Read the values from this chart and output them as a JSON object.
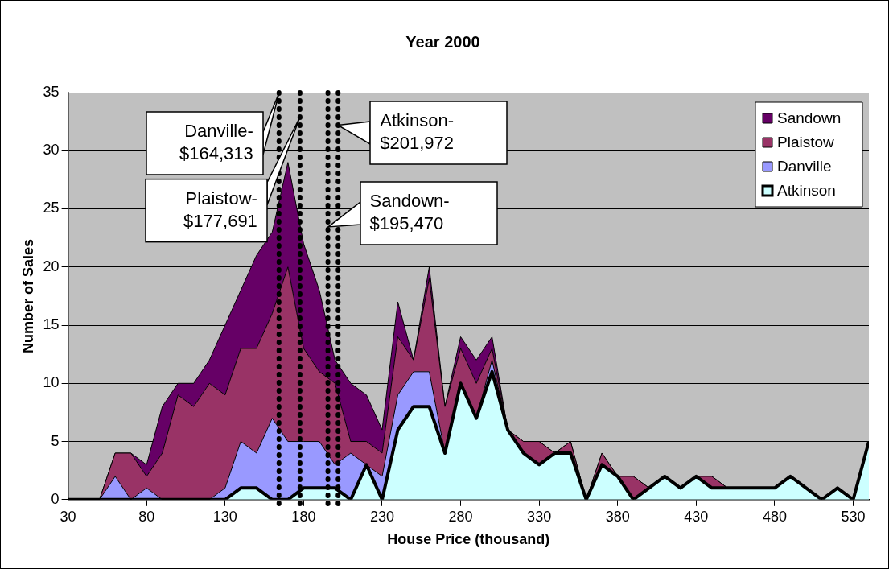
{
  "chart_data": {
    "type": "area",
    "title": "Year 2000",
    "xlabel": "House Price (thousand)",
    "ylabel": "Number of Sales",
    "x": [
      30,
      40,
      50,
      60,
      70,
      80,
      90,
      100,
      110,
      120,
      130,
      140,
      150,
      160,
      170,
      180,
      190,
      200,
      210,
      220,
      230,
      240,
      250,
      260,
      270,
      280,
      290,
      300,
      310,
      320,
      330,
      340,
      350,
      360,
      370,
      380,
      390,
      400,
      410,
      420,
      430,
      440,
      450,
      460,
      470,
      480,
      490,
      500,
      510,
      520,
      530,
      540
    ],
    "series": [
      {
        "name": "Atkinson",
        "color": "#ccffff",
        "values": [
          0,
          0,
          0,
          0,
          0,
          0,
          0,
          0,
          0,
          0,
          0,
          1,
          1,
          0,
          0,
          1,
          1,
          1,
          0,
          3,
          0,
          6,
          8,
          8,
          4,
          10,
          7,
          11,
          6,
          4,
          3,
          4,
          4,
          0,
          3,
          2,
          0,
          1,
          2,
          1,
          2,
          1,
          1,
          1,
          1,
          1,
          2,
          1,
          0,
          1,
          0,
          5
        ]
      },
      {
        "name": "Danville",
        "color": "#9999ff",
        "values": [
          0,
          0,
          0,
          2,
          0,
          1,
          0,
          0,
          0,
          0,
          1,
          4,
          3,
          7,
          5,
          4,
          4,
          2,
          4,
          0,
          2,
          3,
          3,
          3,
          0,
          0,
          0,
          1,
          0,
          0,
          0,
          0,
          0,
          0,
          0,
          0,
          0,
          0,
          0,
          0,
          0,
          0,
          0,
          0,
          0,
          0,
          0,
          0,
          0,
          0,
          0,
          0
        ]
      },
      {
        "name": "Plaistow",
        "color": "#993366",
        "values": [
          0,
          0,
          0,
          2,
          4,
          1,
          4,
          9,
          8,
          10,
          8,
          8,
          9,
          9,
          15,
          8,
          6,
          7,
          1,
          2,
          2,
          5,
          1,
          8,
          4,
          3,
          3,
          1,
          0,
          1,
          2,
          0,
          1,
          0,
          1,
          0,
          2,
          0,
          0,
          0,
          0,
          1,
          0,
          0,
          0,
          0,
          0,
          0,
          0,
          0,
          0,
          0
        ]
      },
      {
        "name": "Sandown",
        "color": "#660066",
        "values": [
          0,
          0,
          0,
          0,
          0,
          1,
          4,
          1,
          2,
          2,
          6,
          5,
          8,
          7,
          9,
          9,
          7,
          2,
          5,
          4,
          2,
          3,
          0,
          1,
          0,
          1,
          2,
          1,
          0,
          0,
          0,
          0,
          0,
          0,
          0,
          0,
          0,
          0,
          0,
          0,
          0,
          0,
          0,
          0,
          0,
          0,
          0,
          0,
          0,
          0,
          0,
          0
        ]
      }
    ],
    "stacked": true,
    "xlim": [
      30,
      540
    ],
    "xticks": [
      30,
      80,
      130,
      180,
      230,
      280,
      330,
      380,
      430,
      480,
      530
    ],
    "ylim": [
      0,
      35
    ],
    "yticks": [
      0,
      5,
      10,
      15,
      20,
      25,
      30,
      35
    ],
    "grid": "y",
    "legend": "top right",
    "ref_lines": [
      {
        "axis": "x",
        "value": 164.313,
        "label": "Danville- $164,313",
        "color": "#000000",
        "line_style": "dotted"
      },
      {
        "axis": "x",
        "value": 177.691,
        "label": "Plaistow- $177,691",
        "color": "#000000",
        "line_style": "dotted"
      },
      {
        "axis": "x",
        "value": 195.47,
        "label": "Sandown- $195,470",
        "color": "#000000",
        "line_style": "dotted"
      },
      {
        "axis": "x",
        "value": 201.972,
        "label": "Atkinson- $201,972",
        "color": "#000000",
        "line_style": "dotted"
      }
    ]
  }
}
